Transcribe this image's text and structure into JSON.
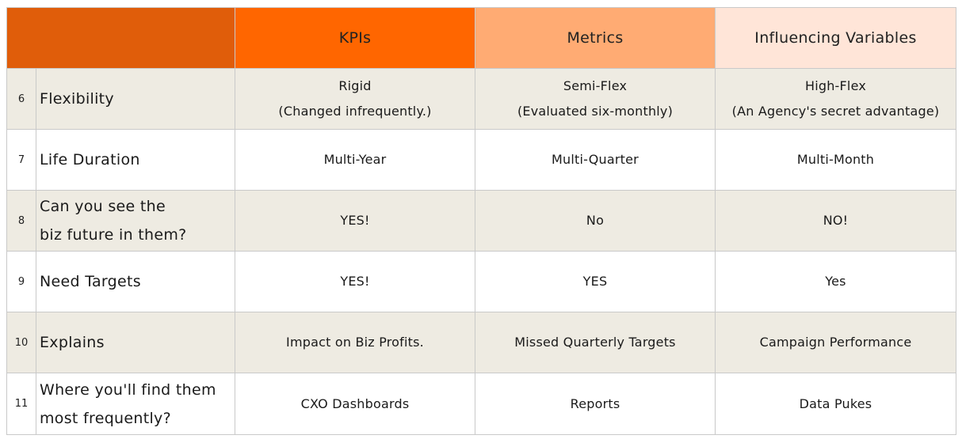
{
  "header": {
    "kpis": "KPIs",
    "metrics": "Metrics",
    "variables": "Influencing Variables"
  },
  "rows": [
    {
      "num": "6",
      "label": [
        "Flexibility"
      ],
      "kpis": [
        "Rigid",
        "(Changed infrequently.)"
      ],
      "metrics": [
        "Semi-Flex",
        "(Evaluated six-monthly)"
      ],
      "variables": [
        "High-Flex",
        "(An Agency's secret advantage)"
      ]
    },
    {
      "num": "7",
      "label": [
        "Life Duration"
      ],
      "kpis": [
        "Multi-Year"
      ],
      "metrics": [
        "Multi-Quarter"
      ],
      "variables": [
        "Multi-Month"
      ]
    },
    {
      "num": "8",
      "label": [
        "Can you see the",
        "biz future in them?"
      ],
      "kpis": [
        "YES!"
      ],
      "metrics": [
        "No"
      ],
      "variables": [
        "NO!"
      ]
    },
    {
      "num": "9",
      "label": [
        "Need Targets"
      ],
      "kpis": [
        "YES!"
      ],
      "metrics": [
        "YES"
      ],
      "variables": [
        "Yes"
      ]
    },
    {
      "num": "10",
      "label": [
        "Explains"
      ],
      "kpis": [
        "Impact on Biz Profits."
      ],
      "metrics": [
        "Missed Quarterly Targets"
      ],
      "variables": [
        "Campaign Performance"
      ]
    },
    {
      "num": "11",
      "label": [
        "Where you'll find them",
        "most frequently?"
      ],
      "kpis": [
        "CXO Dashboards"
      ],
      "metrics": [
        "Reports"
      ],
      "variables": [
        "Data Pukes"
      ]
    }
  ]
}
